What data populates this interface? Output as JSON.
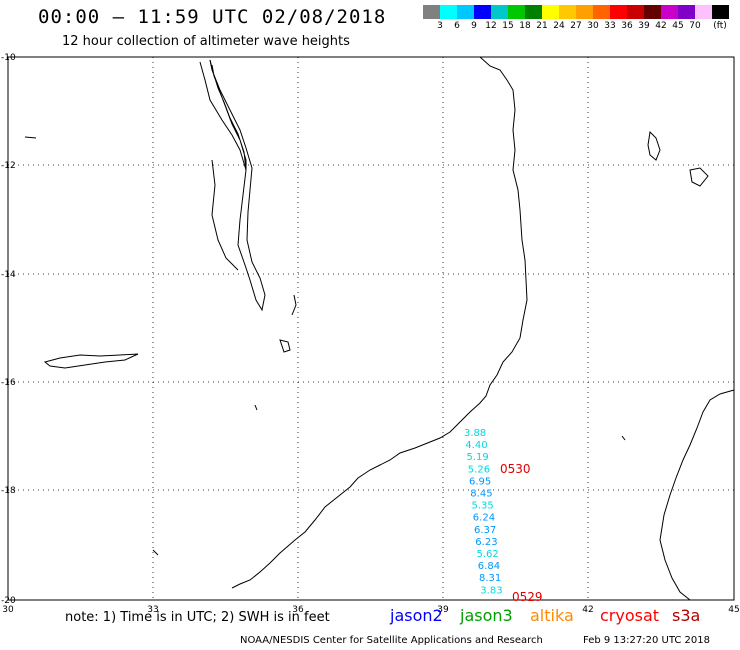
{
  "header": {
    "title": "00:00 – 11:59 UTC 02/08/2018",
    "subtitle": "12 hour collection of altimeter wave heights"
  },
  "colorbar": {
    "colors": [
      "#808080",
      "#00ffff",
      "#00c8ff",
      "#0000ff",
      "#00c8c8",
      "#00c800",
      "#008000",
      "#ffff00",
      "#ffc800",
      "#ffa000",
      "#ff6400",
      "#ff0000",
      "#c80000",
      "#640000",
      "#c800c8",
      "#8000c8",
      "#ffc0ff",
      "#000000"
    ],
    "labels": [
      "3",
      "6",
      "9",
      "12",
      "15",
      "18",
      "21",
      "24",
      "27",
      "30",
      "33",
      "36",
      "39",
      "42",
      "45",
      "70",
      "(ft)"
    ]
  },
  "axes": {
    "x_ticks": [
      "30",
      "33",
      "36",
      "39",
      "42",
      "45"
    ],
    "y_ticks": [
      "-10",
      "-12",
      "-14",
      "-16",
      "-18",
      "-20"
    ]
  },
  "track": {
    "points": [
      {
        "value": "3.88",
        "color": "#00d8e0"
      },
      {
        "value": "4.40",
        "color": "#00d8e0"
      },
      {
        "value": "5.19",
        "color": "#00d8e0"
      },
      {
        "value": "5.26",
        "color": "#00d8e0"
      },
      {
        "value": "6.95",
        "color": "#0096ff"
      },
      {
        "value": "8.45",
        "color": "#0096ff"
      },
      {
        "value": "5.35",
        "color": "#00d8e0"
      },
      {
        "value": "6.24",
        "color": "#0096ff"
      },
      {
        "value": "6.37",
        "color": "#0096ff"
      },
      {
        "value": "6.23",
        "color": "#0096ff"
      },
      {
        "value": "5.62",
        "color": "#00d8e0"
      },
      {
        "value": "6.84",
        "color": "#0096ff"
      },
      {
        "value": "8.31",
        "color": "#0096ff"
      },
      {
        "value": "3.83",
        "color": "#00d8e0"
      }
    ],
    "time_labels": [
      {
        "text": "0530",
        "color": "#e00000"
      },
      {
        "text": "0529",
        "color": "#e00000"
      }
    ]
  },
  "footer": {
    "note": "note:  1) Time is in UTC;  2) SWH is in feet",
    "satellites": [
      {
        "name": "jason2",
        "color": "#0000ff"
      },
      {
        "name": "jason3",
        "color": "#00a000"
      },
      {
        "name": "altika",
        "color": "#ff8c00"
      },
      {
        "name": "cryosat",
        "color": "#ff0000"
      },
      {
        "name": "s3a",
        "color": "#b00000"
      }
    ],
    "credit": "NOAA/NESDIS Center for Satellite Applications and Research",
    "timestamp": "Feb  9 13:27:20 UTC 2018"
  }
}
